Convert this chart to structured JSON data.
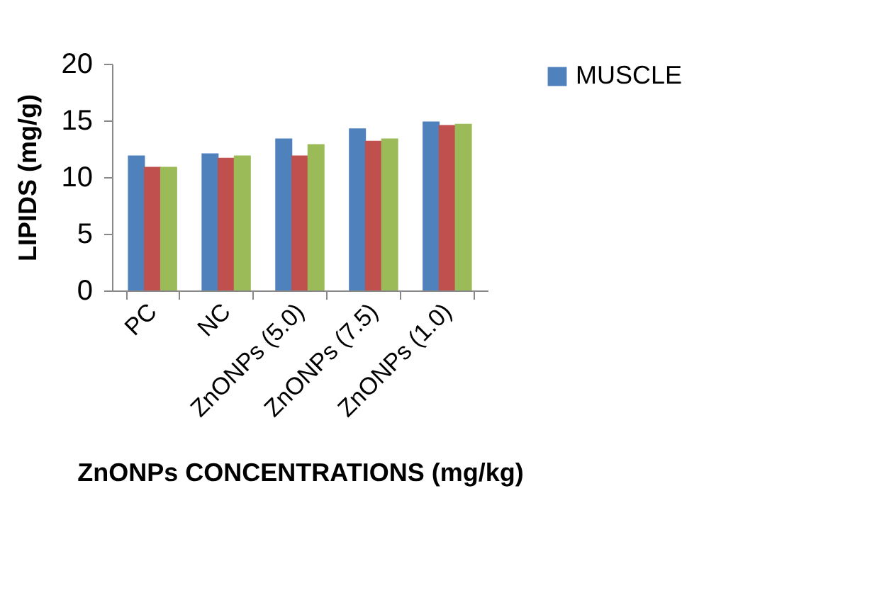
{
  "chart_data": {
    "type": "bar",
    "xlabel": "ZnONPs CONCENTRATIONS (mg/kg)",
    "ylabel": "LIPIDS (mg/g)",
    "categories": [
      "PC",
      "NC",
      "ZnONPs (5.0)",
      "ZnONPs (7.5)",
      "ZnONPs (1.0)"
    ],
    "series": [
      {
        "name": "MUSCLE",
        "color": "#4f81bd",
        "values": [
          11.9,
          12.1,
          13.4,
          14.3,
          14.9
        ]
      },
      {
        "color": "#c0504d",
        "values": [
          10.9,
          11.7,
          11.9,
          13.2,
          14.6
        ]
      },
      {
        "color": "#9bbb59",
        "values": [
          10.9,
          11.9,
          12.9,
          13.4,
          14.7
        ]
      }
    ],
    "ylim": [
      0,
      20
    ],
    "yticks": [
      0,
      5,
      10,
      15,
      20
    ],
    "grid": false,
    "legend": "top right"
  }
}
